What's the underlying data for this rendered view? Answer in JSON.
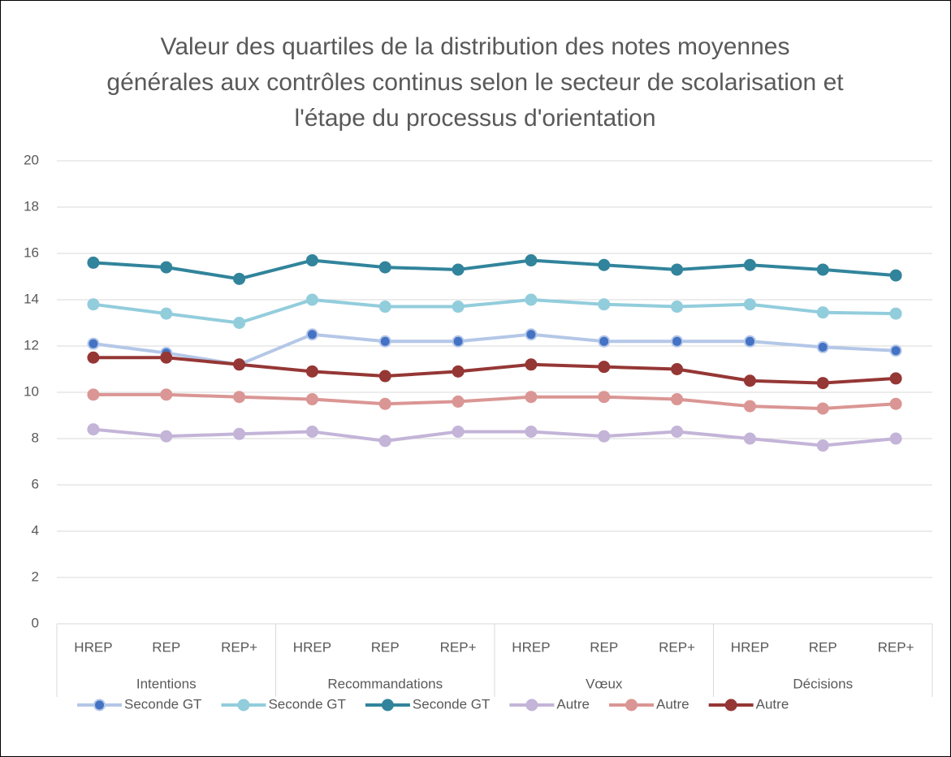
{
  "chart_data": {
    "type": "line",
    "title": "Valeur des quartiles de la distribution des notes moyennes générales aux contrôles continus selon le secteur de scolarisation et l'étape du processus d'orientation",
    "categories": [
      "HREP",
      "REP",
      "REP+",
      "HREP",
      "REP",
      "REP+",
      "HREP",
      "REP",
      "REP+",
      "HREP",
      "REP",
      "REP+"
    ],
    "groups": [
      {
        "name": "Intentions",
        "size": 3
      },
      {
        "name": "Recommandations",
        "size": 3
      },
      {
        "name": "Vœux",
        "size": 3
      },
      {
        "name": "Décisions",
        "size": 3
      }
    ],
    "series": [
      {
        "name": "Seconde GT",
        "color": "#b4c7e7",
        "marker_color": "#4472c4",
        "values": [
          12.1,
          11.7,
          11.2,
          12.5,
          12.2,
          12.2,
          12.5,
          12.2,
          12.2,
          12.2,
          11.95,
          11.8
        ]
      },
      {
        "name": "Seconde GT",
        "color": "#92cddc",
        "marker_color": "#92cddc",
        "values": [
          13.8,
          13.4,
          13.0,
          14.0,
          13.7,
          13.7,
          14.0,
          13.8,
          13.7,
          13.8,
          13.45,
          13.4
        ]
      },
      {
        "name": "Seconde GT",
        "color": "#31849b",
        "marker_color": "#31849b",
        "values": [
          15.6,
          15.4,
          14.9,
          15.7,
          15.4,
          15.3,
          15.7,
          15.5,
          15.3,
          15.5,
          15.3,
          15.05
        ]
      },
      {
        "name": "Autre",
        "color": "#c3b4d8",
        "marker_color": "#c3b4d8",
        "values": [
          8.4,
          8.1,
          8.2,
          8.3,
          7.9,
          8.3,
          8.3,
          8.1,
          8.3,
          8.0,
          7.7,
          8.0
        ]
      },
      {
        "name": "Autre",
        "color": "#da9694",
        "marker_color": "#da9694",
        "values": [
          9.9,
          9.9,
          9.8,
          9.7,
          9.5,
          9.6,
          9.8,
          9.8,
          9.7,
          9.4,
          9.3,
          9.5
        ]
      },
      {
        "name": "Autre",
        "color": "#953735",
        "marker_color": "#953735",
        "values": [
          11.5,
          11.5,
          11.2,
          10.9,
          10.7,
          10.9,
          11.2,
          11.1,
          11.0,
          10.5,
          10.4,
          10.6
        ]
      }
    ],
    "ylim": [
      0,
      20
    ],
    "yticks": [
      0,
      2,
      4,
      6,
      8,
      10,
      12,
      14,
      16,
      18,
      20
    ],
    "grid": true,
    "legend": "bottom"
  }
}
